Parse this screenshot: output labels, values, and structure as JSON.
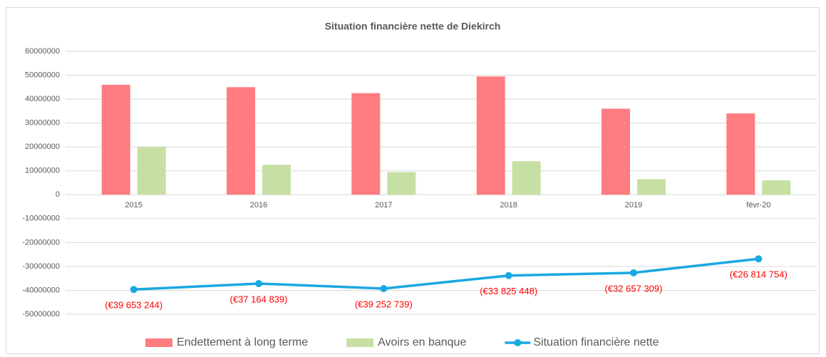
{
  "chart_data": {
    "type": "bar",
    "title": "Situation financière nette de Diekirch",
    "categories": [
      "2015",
      "2016",
      "2017",
      "2018",
      "2019",
      "févr-20"
    ],
    "series": [
      {
        "name": "Endettement à long terme",
        "color": "#ff7c80",
        "values": [
          46000000,
          45000000,
          42500000,
          49500000,
          36000000,
          34000000
        ]
      },
      {
        "name": "Avoirs en banque",
        "color": "#c6e0a4",
        "values": [
          20000000,
          12500000,
          9500000,
          14000000,
          6500000,
          6000000
        ]
      },
      {
        "name": "Situation financière nette",
        "type": "line",
        "color": "#1aa8e0",
        "label_color": "#ff0000",
        "values": [
          -39653244,
          -37164839,
          -39252739,
          -33825448,
          -32657309,
          -26814754
        ],
        "value_labels": [
          "(€39 653 244)",
          "(€37 164 839)",
          "(€39 252 739)",
          "(€33 825 448)",
          "(€32 657 309)",
          "(€26 814 754)"
        ]
      }
    ],
    "ylim": [
      -50000000,
      60000000
    ],
    "yticks": [
      -50000000,
      -40000000,
      -30000000,
      -20000000,
      -10000000,
      0,
      10000000,
      20000000,
      30000000,
      40000000,
      50000000,
      60000000
    ],
    "grid": true,
    "legend": "bottom"
  }
}
